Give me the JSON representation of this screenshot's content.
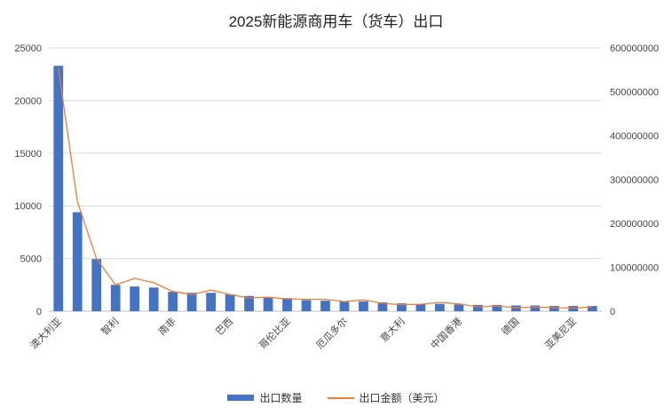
{
  "chart_data": {
    "type": "bar",
    "title": "2025新能源商用车（货车）出口",
    "categories": [
      "澳大利亚",
      "",
      "",
      "智利",
      "",
      "",
      "南非",
      "",
      "",
      "巴西",
      "",
      "",
      "哥伦比亚",
      "",
      "",
      "厄瓜多尔",
      "",
      "",
      "意大利",
      "",
      "",
      "中国香港",
      "",
      "",
      "德国",
      "",
      "",
      "亚美尼亚",
      ""
    ],
    "series": [
      {
        "name": "出口数量",
        "axis": "left",
        "color": "#4472C4",
        "values": [
          23300,
          9400,
          4950,
          2500,
          2350,
          2250,
          1850,
          1750,
          1750,
          1600,
          1450,
          1300,
          1250,
          1050,
          1000,
          950,
          950,
          850,
          750,
          700,
          700,
          650,
          600,
          600,
          550,
          550,
          500,
          500,
          500
        ]
      },
      {
        "name": "出口金额（美元）",
        "axis": "right",
        "color": "#ED7D31",
        "values": [
          555000000,
          250000000,
          120000000,
          60000000,
          75000000,
          65000000,
          45000000,
          38000000,
          48000000,
          38000000,
          30000000,
          32000000,
          28000000,
          27000000,
          27000000,
          22000000,
          26000000,
          18000000,
          15000000,
          16000000,
          20000000,
          17000000,
          10000000,
          12000000,
          8000000,
          10000000,
          8000000,
          7000000,
          10000000
        ]
      }
    ],
    "y_left": {
      "min": 0,
      "max": 25000,
      "ticks": [
        "0",
        "5000",
        "10000",
        "15000",
        "20000",
        "25000"
      ]
    },
    "y_right": {
      "min": 0,
      "max": 600000000,
      "ticks": [
        "0",
        "100000000",
        "200000000",
        "300000000",
        "400000000",
        "500000000",
        "600000000"
      ]
    },
    "grid": true,
    "legend_position": "bottom"
  }
}
